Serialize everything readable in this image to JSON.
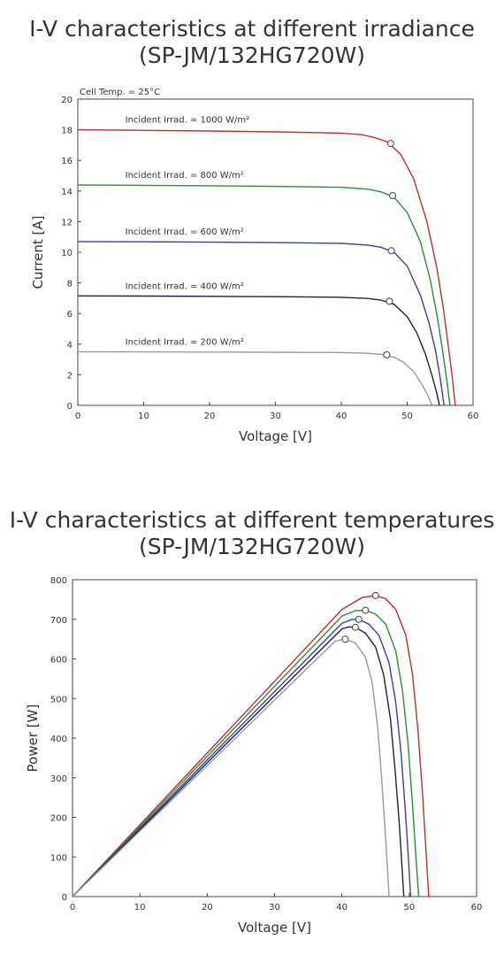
{
  "chart_data": [
    {
      "type": "line",
      "title": "I-V characteristics at different irradiance",
      "subtitle": "(SP-JM/132HG720W)",
      "annotation": "Cell Temp. = 25°C",
      "xlabel": "Voltage [V]",
      "ylabel": "Current [A]",
      "xlim": [
        0,
        60
      ],
      "ylim": [
        0,
        20
      ],
      "xticks": [
        "0",
        "10",
        "20",
        "30",
        "40",
        "50",
        "60"
      ],
      "yticks": [
        "0",
        "2",
        "4",
        "6",
        "8",
        "10",
        "12",
        "14",
        "16",
        "18",
        "20"
      ],
      "grid": false,
      "series": [
        {
          "name": "Incident Irrad. = 1000 W/m²",
          "color": "#c0302f",
          "mpp": [
            47.5,
            17.1
          ],
          "points": [
            [
              0,
              18.0
            ],
            [
              10,
              17.96
            ],
            [
              20,
              17.92
            ],
            [
              30,
              17.86
            ],
            [
              40,
              17.78
            ],
            [
              43,
              17.68
            ],
            [
              45,
              17.5
            ],
            [
              47,
              17.2
            ],
            [
              49,
              16.4
            ],
            [
              51,
              14.8
            ],
            [
              53,
              12.0
            ],
            [
              54.5,
              9.0
            ],
            [
              55.5,
              6.3
            ],
            [
              56.2,
              4.0
            ],
            [
              56.8,
              2.0
            ],
            [
              57.3,
              0
            ]
          ]
        },
        {
          "name": "Incident Irrad. = 800 W/m²",
          "color": "#2d8c3a",
          "mpp": [
            47.8,
            13.7
          ],
          "points": [
            [
              0,
              14.4
            ],
            [
              10,
              14.37
            ],
            [
              20,
              14.34
            ],
            [
              30,
              14.3
            ],
            [
              40,
              14.24
            ],
            [
              44,
              14.12
            ],
            [
              46,
              13.95
            ],
            [
              48,
              13.6
            ],
            [
              50,
              12.6
            ],
            [
              52,
              10.7
            ],
            [
              53.5,
              8.2
            ],
            [
              54.6,
              5.7
            ],
            [
              55.4,
              3.5
            ],
            [
              56.0,
              1.7
            ],
            [
              56.5,
              0
            ]
          ]
        },
        {
          "name": "Incident Irrad. = 600 W/m²",
          "color": "#3a3f9e",
          "mpp": [
            47.6,
            10.1
          ],
          "points": [
            [
              0,
              10.7
            ],
            [
              10,
              10.68
            ],
            [
              20,
              10.66
            ],
            [
              30,
              10.63
            ],
            [
              40,
              10.58
            ],
            [
              44,
              10.47
            ],
            [
              46,
              10.33
            ],
            [
              48,
              10.0
            ],
            [
              50,
              9.1
            ],
            [
              52,
              7.2
            ],
            [
              53.3,
              5.4
            ],
            [
              54.3,
              3.6
            ],
            [
              55.0,
              1.8
            ],
            [
              55.6,
              0
            ]
          ]
        },
        {
          "name": "Incident Irrad. = 400 W/m²",
          "color": "#1e2138",
          "mpp": [
            47.3,
            6.8
          ],
          "points": [
            [
              0,
              7.15
            ],
            [
              10,
              7.14
            ],
            [
              20,
              7.12
            ],
            [
              30,
              7.1
            ],
            [
              40,
              7.06
            ],
            [
              44,
              6.98
            ],
            [
              46,
              6.88
            ],
            [
              48,
              6.6
            ],
            [
              50,
              5.8
            ],
            [
              51.5,
              4.7
            ],
            [
              52.8,
              3.3
            ],
            [
              53.8,
              1.9
            ],
            [
              54.5,
              0.8
            ],
            [
              54.9,
              0
            ]
          ]
        },
        {
          "name": "Incident Irrad. = 200 W/m²",
          "color": "#9a9a9a",
          "mpp": [
            46.9,
            3.3
          ],
          "points": [
            [
              0,
              3.5
            ],
            [
              10,
              3.49
            ],
            [
              20,
              3.48
            ],
            [
              30,
              3.47
            ],
            [
              40,
              3.45
            ],
            [
              44,
              3.4
            ],
            [
              46,
              3.33
            ],
            [
              48,
              3.15
            ],
            [
              49.5,
              2.8
            ],
            [
              51,
              2.2
            ],
            [
              52.2,
              1.4
            ],
            [
              53.2,
              0.6
            ],
            [
              53.8,
              0
            ]
          ]
        }
      ]
    },
    {
      "type": "line",
      "title": "I-V characteristics at different temperatures",
      "subtitle": "(SP-JM/132HG720W)",
      "xlabel": "Voltage [V]",
      "ylabel": "Power [W]",
      "xlim": [
        0,
        60
      ],
      "ylim": [
        0,
        800
      ],
      "xticks": [
        "0",
        "10",
        "20",
        "30",
        "40",
        "50",
        "60"
      ],
      "yticks": [
        "0",
        "100",
        "200",
        "300",
        "400",
        "500",
        "600",
        "700",
        "800"
      ],
      "grid": false,
      "series": [
        {
          "color": "#c0302f",
          "mpp": [
            45.0,
            760
          ],
          "points": [
            [
              0,
              0
            ],
            [
              40,
              725
            ],
            [
              43,
              755
            ],
            [
              45,
              760
            ],
            [
              46.5,
              752
            ],
            [
              48,
              725
            ],
            [
              49.5,
              660
            ],
            [
              50.5,
              560
            ],
            [
              51.3,
              420
            ],
            [
              52.0,
              250
            ],
            [
              52.5,
              110
            ],
            [
              52.9,
              0
            ]
          ]
        },
        {
          "color": "#2d8c3a",
          "mpp": [
            43.5,
            723
          ],
          "points": [
            [
              0,
              0
            ],
            [
              40,
              708
            ],
            [
              42,
              722
            ],
            [
              43.5,
              723
            ],
            [
              45,
              713
            ],
            [
              46.5,
              688
            ],
            [
              48,
              620
            ],
            [
              49,
              520
            ],
            [
              49.8,
              390
            ],
            [
              50.5,
              230
            ],
            [
              51.0,
              100
            ],
            [
              51.4,
              0
            ]
          ]
        },
        {
          "color": "#3a3f9e",
          "mpp": [
            42.5,
            700
          ],
          "points": [
            [
              0,
              0
            ],
            [
              40,
              690
            ],
            [
              41.5,
              700
            ],
            [
              42.5,
              700
            ],
            [
              44,
              688
            ],
            [
              45.5,
              660
            ],
            [
              47,
              590
            ],
            [
              48,
              490
            ],
            [
              48.8,
              360
            ],
            [
              49.4,
              220
            ],
            [
              49.9,
              90
            ],
            [
              50.2,
              0
            ]
          ]
        },
        {
          "color": "#1e2138",
          "mpp": [
            42.0,
            680
          ],
          "points": [
            [
              0,
              0
            ],
            [
              40,
              676
            ],
            [
              41,
              681
            ],
            [
              42,
              680
            ],
            [
              43.5,
              665
            ],
            [
              45,
              630
            ],
            [
              46.2,
              560
            ],
            [
              47.2,
              450
            ],
            [
              47.9,
              320
            ],
            [
              48.5,
              190
            ],
            [
              48.9,
              80
            ],
            [
              49.2,
              0
            ]
          ]
        },
        {
          "color": "#9a9a9a",
          "mpp": [
            40.5,
            650
          ],
          "points": [
            [
              0,
              0
            ],
            [
              39,
              645
            ],
            [
              40.5,
              650
            ],
            [
              42,
              640
            ],
            [
              43.5,
              605
            ],
            [
              44.5,
              540
            ],
            [
              45.3,
              430
            ],
            [
              45.9,
              300
            ],
            [
              46.4,
              170
            ],
            [
              46.8,
              60
            ],
            [
              47.0,
              0
            ]
          ]
        }
      ]
    }
  ]
}
